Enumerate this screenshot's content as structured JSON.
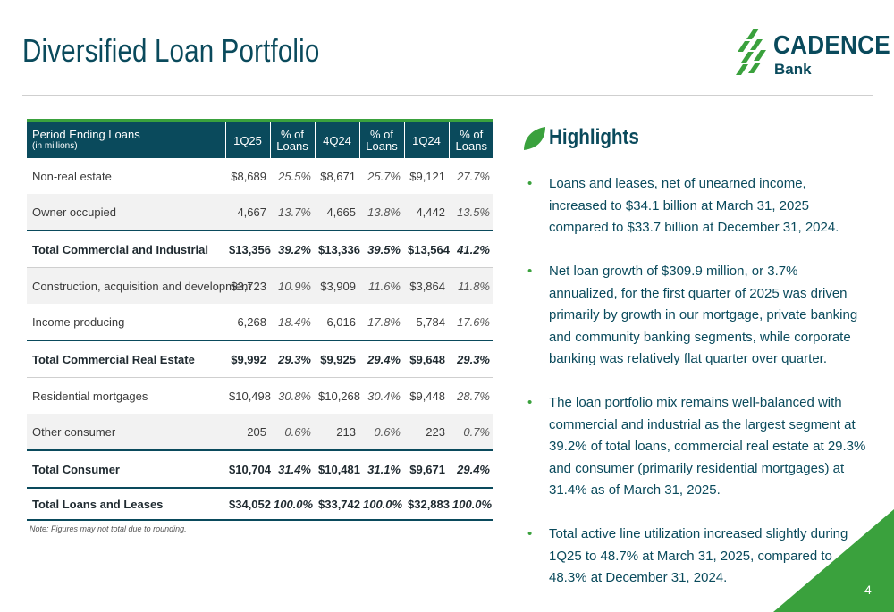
{
  "page": {
    "title": "Diversified Loan Portfolio",
    "page_number": "4",
    "colors": {
      "navy": "#0a4a5c",
      "green": "#3aa13d",
      "row_alt": "#f2f2f2"
    }
  },
  "logo": {
    "main_text": "CADENCE",
    "sub_text": "Bank",
    "icon": "cadence-wheat-icon"
  },
  "table": {
    "header": {
      "period_label": "Period Ending Loans",
      "period_sub": "(in millions)",
      "col_1q25": "1Q25",
      "col_4q24": "4Q24",
      "col_1q24": "1Q24",
      "pct_label_line1": "% of",
      "pct_label_line2": "Loans"
    },
    "rows": [
      {
        "label": "Non-real estate",
        "v1": "$8,689",
        "p1": "25.5%",
        "v2": "$8,671",
        "p2": "25.7%",
        "v3": "$9,121",
        "p3": "27.7%"
      },
      {
        "label": "Owner occupied",
        "v1": "4,667",
        "p1": "13.7%",
        "v2": "4,665",
        "p2": "13.8%",
        "v3": "4,442",
        "p3": "13.5%"
      },
      {
        "label": "Total Commercial and Industrial",
        "v1": "$13,356",
        "p1": "39.2%",
        "v2": "$13,336",
        "p2": "39.5%",
        "v3": "$13,564",
        "p3": "41.2%"
      },
      {
        "label": "Construction, acquisition and development",
        "v1": "$3,723",
        "p1": "10.9%",
        "v2": "$3,909",
        "p2": "11.6%",
        "v3": "$3,864",
        "p3": "11.8%"
      },
      {
        "label": "Income producing",
        "v1": "6,268",
        "p1": "18.4%",
        "v2": "6,016",
        "p2": "17.8%",
        "v3": "5,784",
        "p3": "17.6%"
      },
      {
        "label": "Total Commercial Real Estate",
        "v1": "$9,992",
        "p1": "29.3%",
        "v2": "$9,925",
        "p2": "29.4%",
        "v3": "$9,648",
        "p3": "29.3%"
      },
      {
        "label": "Residential mortgages",
        "v1": "$10,498",
        "p1": "30.8%",
        "v2": "$10,268",
        "p2": "30.4%",
        "v3": "$9,448",
        "p3": "28.7%"
      },
      {
        "label": "Other consumer",
        "v1": "205",
        "p1": "0.6%",
        "v2": "213",
        "p2": "0.6%",
        "v3": "223",
        "p3": "0.7%"
      },
      {
        "label": "Total Consumer",
        "v1": "$10,704",
        "p1": "31.4%",
        "v2": "$10,481",
        "p2": "31.1%",
        "v3": "$9,671",
        "p3": "29.4%"
      },
      {
        "label": "Total Loans and Leases",
        "v1": "$34,052",
        "p1": "100.0%",
        "v2": "$33,742",
        "p2": "100.0%",
        "v3": "$32,883",
        "p3": "100.0%"
      }
    ],
    "note": "Note: Figures may not total due to rounding."
  },
  "highlights": {
    "title": "Highlights",
    "bullets": [
      "Loans and leases, net of unearned income, increased to $34.1 billion at March 31, 2025 compared to $33.7 billion at December 31, 2024.",
      "Net loan growth of $309.9 million, or 3.7% annualized, for the first quarter of 2025 was driven primarily by growth in our mortgage, private banking and community banking segments, while corporate banking was relatively flat quarter over quarter.",
      "The loan portfolio mix remains well-balanced with commercial and industrial as the largest segment at 39.2% of total loans, commercial real estate at 29.3% and consumer (primarily residential mortgages) at 31.4% as of March 31, 2025.",
      "Total active line utilization increased slightly during 1Q25 to 48.7% at March 31, 2025, compared to 48.3% at December 31, 2024."
    ]
  }
}
